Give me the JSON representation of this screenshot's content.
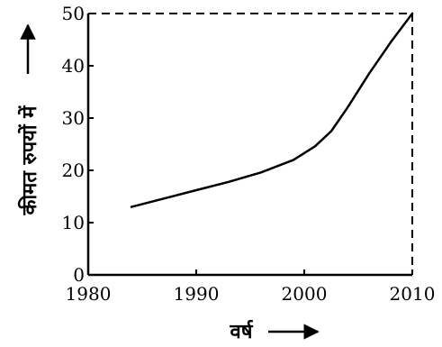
{
  "chart_data": {
    "type": "line",
    "title": "",
    "xlabel": "वर्ष",
    "ylabel": "कीमत रुपयों में",
    "xlim": [
      1980,
      2010
    ],
    "ylim": [
      0,
      50
    ],
    "xticks": [
      "1980",
      "1990",
      "2000",
      "2010"
    ],
    "yticks": [
      "0",
      "10",
      "20",
      "30",
      "40",
      "50"
    ],
    "grid": false,
    "series": [
      {
        "x": [
          1984,
          1987,
          1990,
          1993,
          1996,
          1999,
          2001,
          2002.5,
          2004,
          2006,
          2008,
          2010
        ],
        "y": [
          13,
          14.6,
          16.2,
          17.8,
          19.6,
          22,
          24.6,
          27.5,
          32,
          38.5,
          44.5,
          50
        ]
      }
    ],
    "reference_lines": [
      {
        "orientation": "horizontal",
        "value": 50,
        "style": "dashed"
      },
      {
        "orientation": "vertical",
        "value": 2010,
        "style": "dashed"
      }
    ]
  }
}
